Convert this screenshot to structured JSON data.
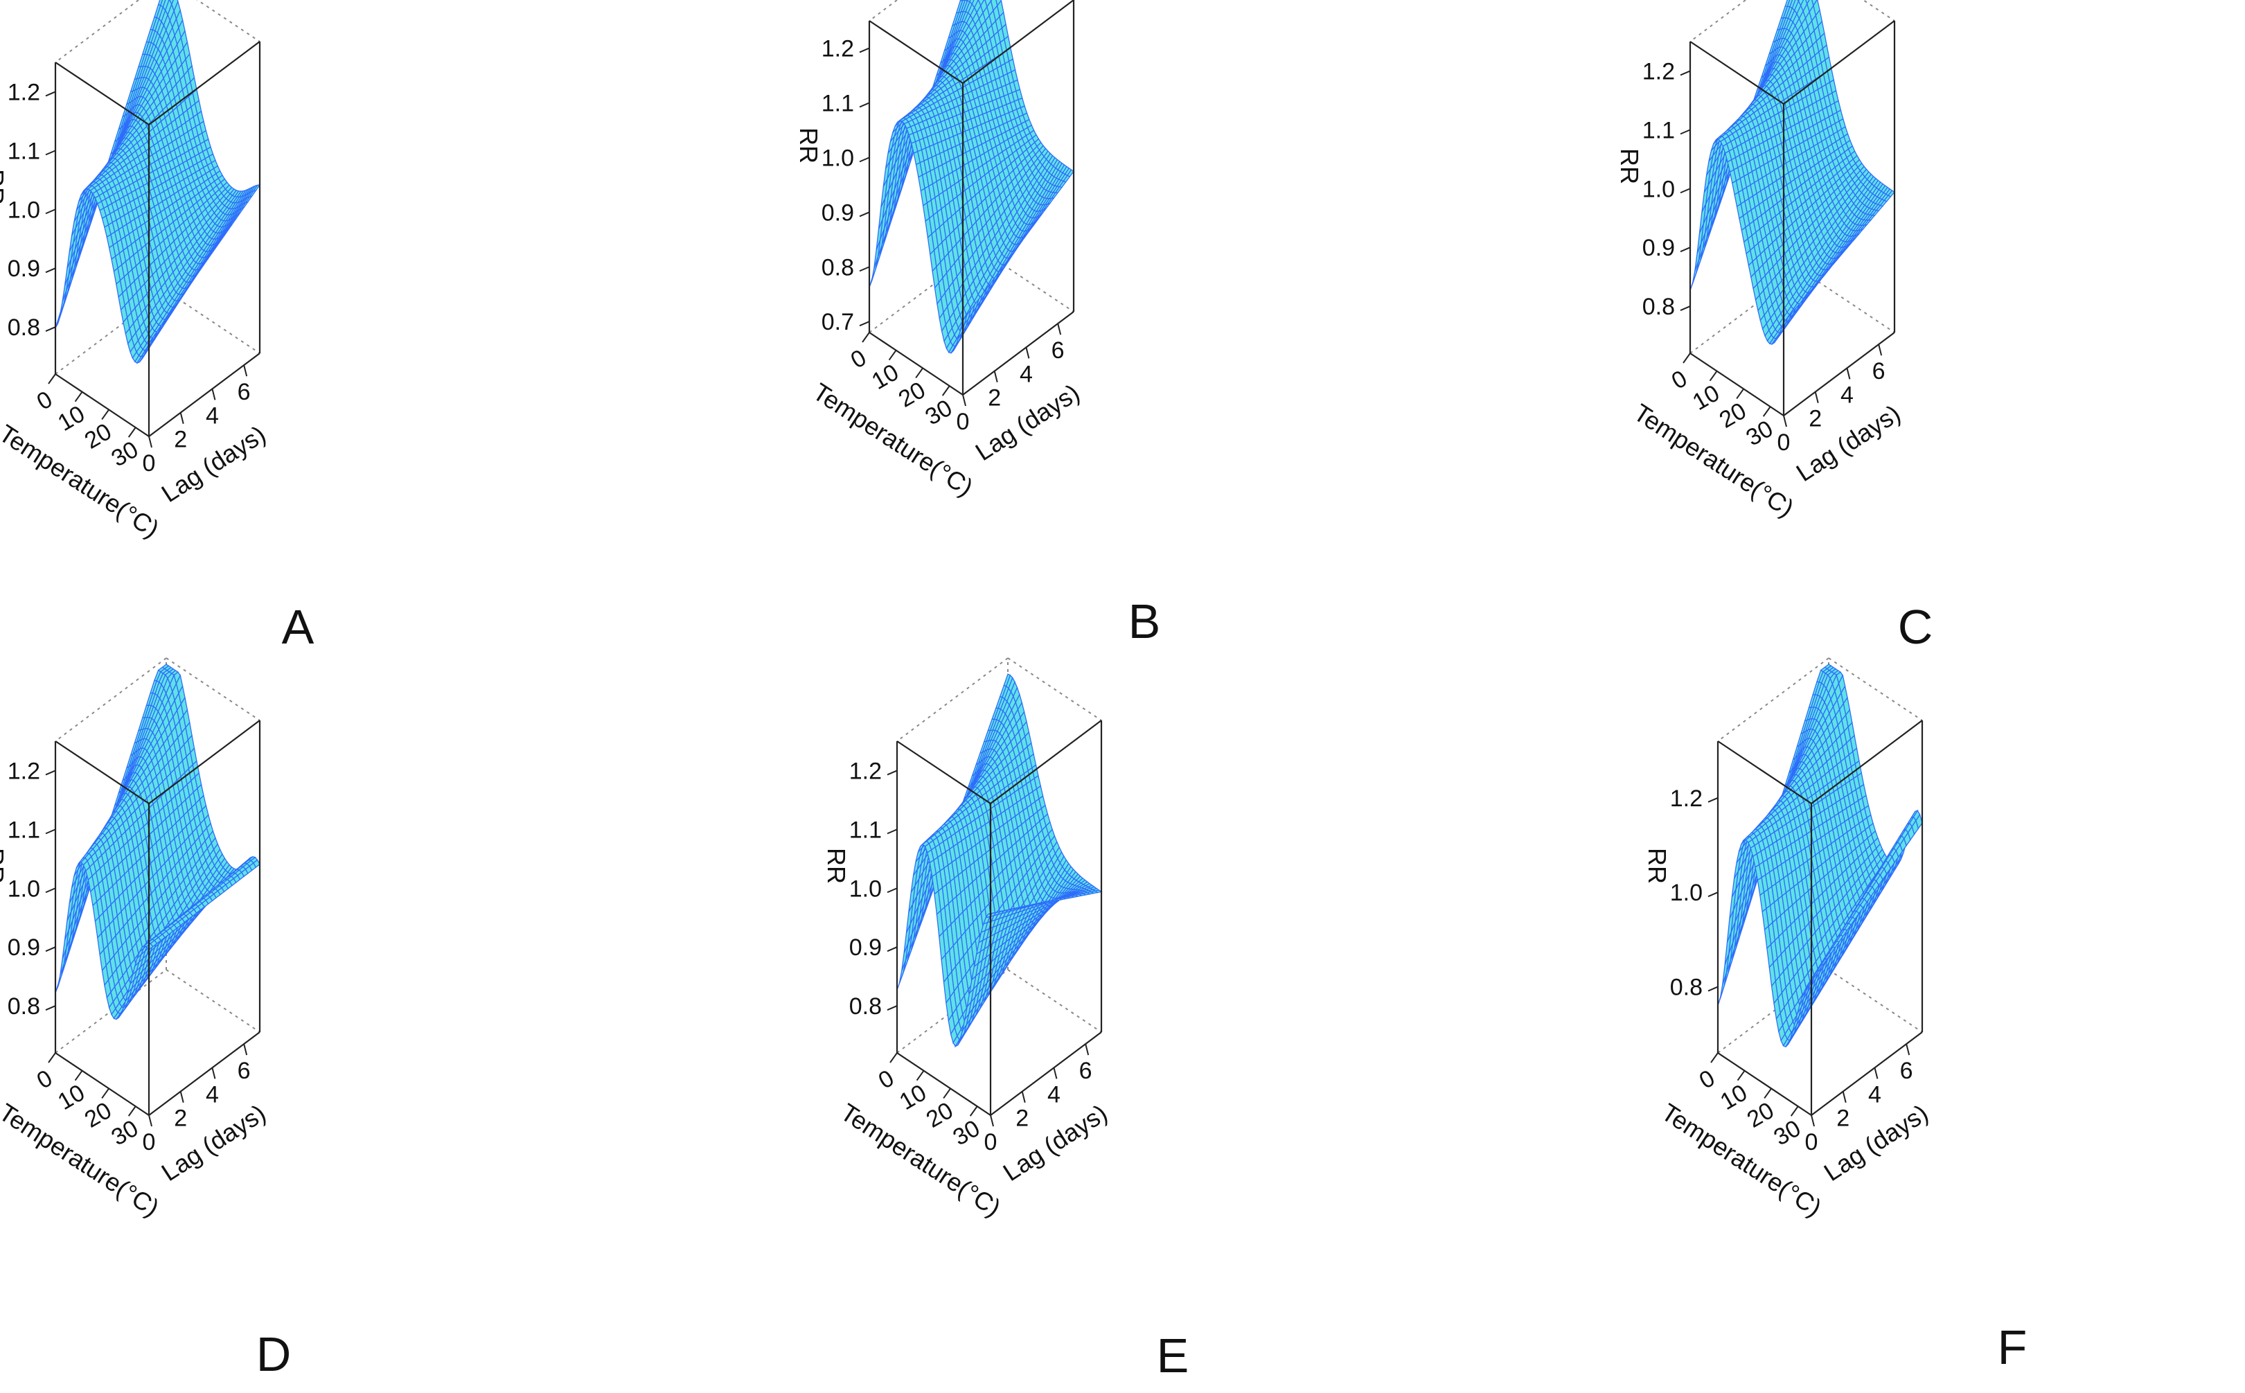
{
  "chart_data": [
    {
      "panel": "A",
      "type": "surface3d",
      "xlabel": "Temperature(°C)",
      "x_ticks": [
        "0",
        "10",
        "20",
        "30"
      ],
      "ylabel": "Lag (days)",
      "y_ticks": [
        "0",
        "2",
        "4",
        "6"
      ],
      "zlabel": "RR",
      "z_ticks": [
        "0.8",
        "0.9",
        "1.0",
        "1.1",
        "1.2"
      ],
      "zlim": [
        0.72,
        1.25
      ],
      "surface_color": "#2f6dfb",
      "mesh_color": "#5fe1e6"
    },
    {
      "panel": "B",
      "type": "surface3d",
      "xlabel": "Temperature(°C)",
      "x_ticks": [
        "0",
        "10",
        "20",
        "30"
      ],
      "ylabel": "Lag (days)",
      "y_ticks": [
        "0",
        "2",
        "4",
        "6"
      ],
      "zlabel": "RR",
      "z_ticks": [
        "0.7",
        "0.8",
        "0.9",
        "1.0",
        "1.1",
        "1.2"
      ],
      "zlim": [
        0.68,
        1.25
      ],
      "surface_color": "#2f6dfb",
      "mesh_color": "#5fe1e6"
    },
    {
      "panel": "C",
      "type": "surface3d",
      "xlabel": "Temperature(°C)",
      "x_ticks": [
        "0",
        "10",
        "20",
        "30"
      ],
      "ylabel": "Lag (days)",
      "y_ticks": [
        "0",
        "2",
        "4",
        "6"
      ],
      "zlabel": "RR",
      "z_ticks": [
        "0.8",
        "0.9",
        "1.0",
        "1.1",
        "1.2"
      ],
      "zlim": [
        0.72,
        1.25
      ],
      "surface_color": "#2f6dfb",
      "mesh_color": "#5fe1e6"
    },
    {
      "panel": "D",
      "type": "surface3d",
      "xlabel": "Temperature(°C)",
      "x_ticks": [
        "0",
        "10",
        "20",
        "30"
      ],
      "ylabel": "Lag (days)",
      "y_ticks": [
        "0",
        "2",
        "4",
        "6"
      ],
      "zlabel": "RR",
      "z_ticks": [
        "0.8",
        "0.9",
        "1.0",
        "1.1",
        "1.2"
      ],
      "zlim": [
        0.72,
        1.25
      ],
      "surface_color": "#2f6dfb",
      "mesh_color": "#5fe1e6"
    },
    {
      "panel": "E",
      "type": "surface3d",
      "xlabel": "Temperature(°C)",
      "x_ticks": [
        "0",
        "10",
        "20",
        "30"
      ],
      "ylabel": "Lag (days)",
      "y_ticks": [
        "0",
        "2",
        "4",
        "6"
      ],
      "zlabel": "RR",
      "z_ticks": [
        "0.8",
        "0.9",
        "1.0",
        "1.1",
        "1.2"
      ],
      "zlim": [
        0.72,
        1.25
      ],
      "surface_color": "#2f6dfb",
      "mesh_color": "#5fe1e6"
    },
    {
      "panel": "F",
      "type": "surface3d",
      "xlabel": "Temperature(°C)",
      "x_ticks": [
        "0",
        "10",
        "20",
        "30"
      ],
      "ylabel": "Lag (days)",
      "y_ticks": [
        "0",
        "2",
        "4",
        "6"
      ],
      "zlabel": "RR",
      "z_ticks": [
        "0.8",
        "1.0",
        "1.2"
      ],
      "zlim": [
        0.66,
        1.32
      ],
      "surface_color": "#2f6dfb",
      "mesh_color": "#5fe1e6"
    }
  ]
}
